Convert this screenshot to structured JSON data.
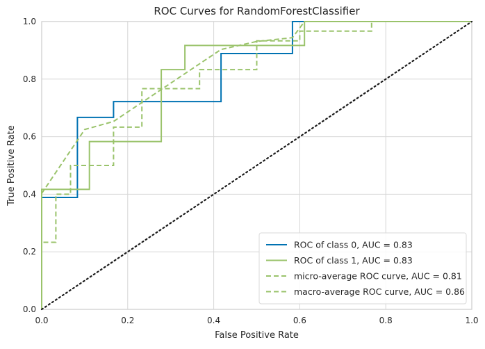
{
  "chart_data": {
    "type": "line",
    "title": "ROC Curves for RandomForestClassifier",
    "xlabel": "False Positive Rate",
    "ylabel": "True Positive Rate",
    "xlim": [
      0,
      1
    ],
    "ylim": [
      0,
      1
    ],
    "xticks": [
      "0.0",
      "0.2",
      "0.4",
      "0.6",
      "0.8",
      "1.0"
    ],
    "yticks": [
      "0.0",
      "0.2",
      "0.4",
      "0.6",
      "0.8",
      "1.0"
    ],
    "grid": true,
    "legend_position": "lower-right",
    "series": [
      {
        "name": "ROC of class 0, AUC = 0.83",
        "color": "#0072b2",
        "dash": "solid",
        "x": [
          0.0,
          0.0,
          0.083,
          0.083,
          0.167,
          0.167,
          0.417,
          0.417,
          0.583,
          0.583,
          1.0
        ],
        "y": [
          0.0,
          0.389,
          0.389,
          0.667,
          0.667,
          0.722,
          0.722,
          0.889,
          0.889,
          1.0,
          1.0
        ]
      },
      {
        "name": "ROC of class 1, AUC = 0.83",
        "color": "#9ac36b",
        "dash": "solid",
        "x": [
          0.0,
          0.0,
          0.111,
          0.111,
          0.278,
          0.278,
          0.333,
          0.333,
          0.611,
          0.611,
          1.0
        ],
        "y": [
          0.0,
          0.417,
          0.417,
          0.583,
          0.583,
          0.833,
          0.833,
          0.917,
          0.917,
          1.0,
          1.0
        ]
      },
      {
        "name": "micro-average ROC curve, AUC = 0.81",
        "color": "#9ac36b",
        "dash": "dashed",
        "x": [
          0.0,
          0.0,
          0.033,
          0.033,
          0.067,
          0.067,
          0.167,
          0.167,
          0.233,
          0.233,
          0.367,
          0.367,
          0.5,
          0.5,
          0.6,
          0.6,
          0.767,
          0.767,
          1.0
        ],
        "y": [
          0.0,
          0.233,
          0.233,
          0.4,
          0.4,
          0.5,
          0.5,
          0.633,
          0.633,
          0.767,
          0.767,
          0.833,
          0.833,
          0.933,
          0.933,
          0.967,
          0.967,
          1.0,
          1.0
        ]
      },
      {
        "name": "macro-average ROC curve, AUC = 0.86",
        "color": "#9ac36b",
        "dash": "dashed",
        "x": [
          0.0,
          0.1,
          0.167,
          0.25,
          0.333,
          0.417,
          0.5,
          0.583,
          0.611,
          1.0
        ],
        "y": [
          0.403,
          0.625,
          0.653,
          0.736,
          0.819,
          0.903,
          0.931,
          0.944,
          1.0,
          1.0
        ]
      },
      {
        "name": "",
        "color": "#1a1a1a",
        "dash": "dotted",
        "x": [
          0.0,
          1.0
        ],
        "y": [
          0.0,
          1.0
        ]
      }
    ]
  }
}
